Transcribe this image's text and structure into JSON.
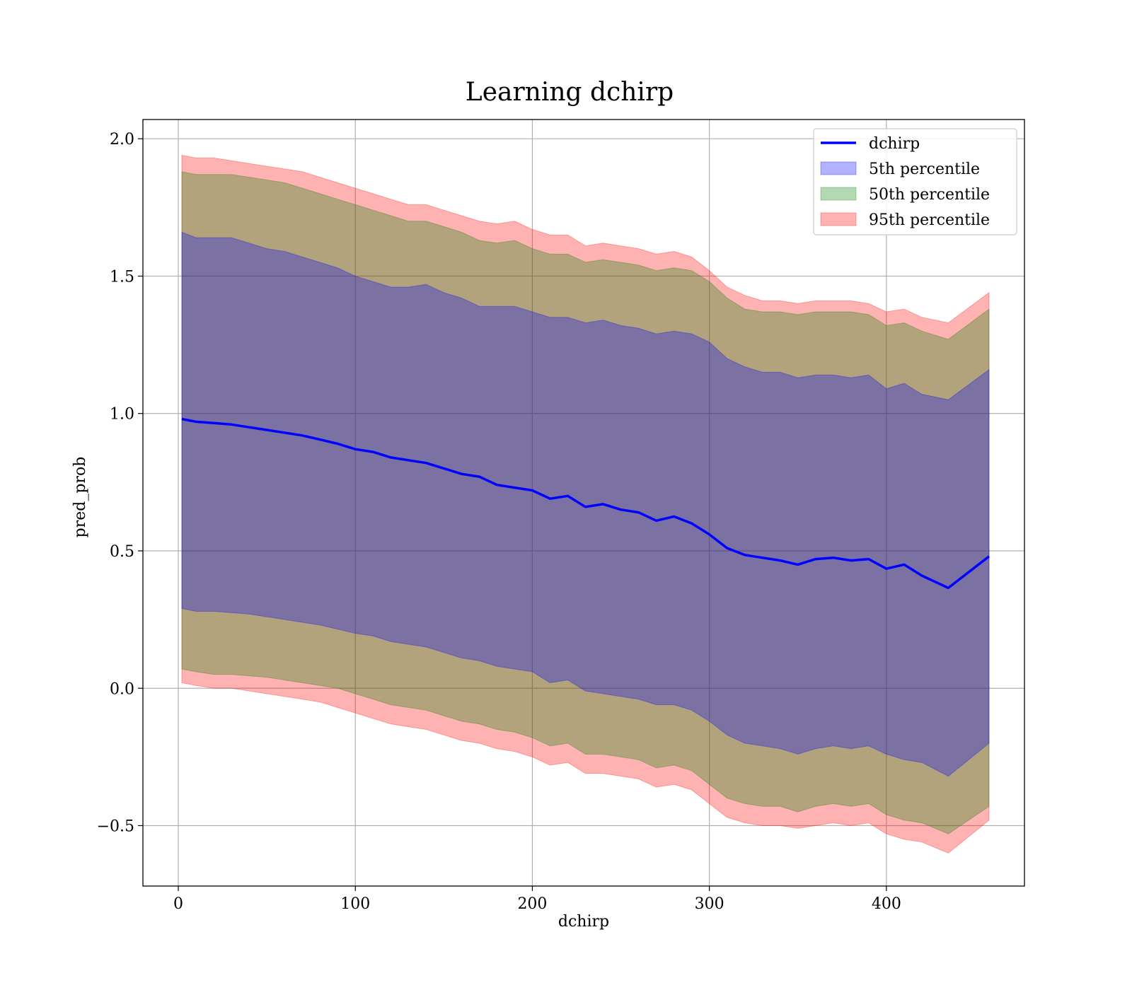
{
  "chart_data": {
    "type": "line",
    "title": "Learning dchirp",
    "xlabel": "dchirp",
    "ylabel": "pred_prob",
    "xlim": [
      -20,
      478
    ],
    "ylim": [
      -0.72,
      2.07
    ],
    "xticks": [
      0,
      100,
      200,
      300,
      400
    ],
    "xtick_labels": [
      "0",
      "100",
      "200",
      "300",
      "400"
    ],
    "yticks": [
      -0.5,
      0.0,
      0.5,
      1.0,
      1.5,
      2.0
    ],
    "ytick_labels": [
      "−0.5",
      "0.0",
      "0.5",
      "1.0",
      "1.5",
      "2.0"
    ],
    "grid": true,
    "legend_position": "top-right",
    "x": [
      2,
      10,
      20,
      30,
      40,
      50,
      60,
      70,
      80,
      90,
      100,
      110,
      120,
      130,
      140,
      150,
      160,
      170,
      180,
      190,
      200,
      210,
      220,
      230,
      240,
      250,
      260,
      270,
      280,
      290,
      300,
      310,
      320,
      330,
      340,
      350,
      360,
      370,
      380,
      390,
      400,
      410,
      420,
      435,
      458
    ],
    "series": [
      {
        "name": "dchirp",
        "kind": "line",
        "color": "#0000ff",
        "values": [
          0.98,
          0.97,
          0.965,
          0.96,
          0.95,
          0.94,
          0.93,
          0.92,
          0.905,
          0.89,
          0.87,
          0.86,
          0.84,
          0.83,
          0.82,
          0.8,
          0.78,
          0.77,
          0.74,
          0.73,
          0.72,
          0.69,
          0.7,
          0.66,
          0.67,
          0.65,
          0.64,
          0.61,
          0.625,
          0.6,
          0.56,
          0.51,
          0.485,
          0.475,
          0.465,
          0.45,
          0.47,
          0.475,
          0.465,
          0.47,
          0.435,
          0.45,
          0.41,
          0.365,
          0.48
        ]
      },
      {
        "name": "5th percentile",
        "kind": "band",
        "color": "#0000ff",
        "upper": [
          1.66,
          1.64,
          1.64,
          1.64,
          1.62,
          1.6,
          1.59,
          1.57,
          1.55,
          1.53,
          1.5,
          1.48,
          1.46,
          1.46,
          1.47,
          1.44,
          1.42,
          1.39,
          1.39,
          1.39,
          1.37,
          1.35,
          1.35,
          1.33,
          1.34,
          1.32,
          1.31,
          1.29,
          1.3,
          1.29,
          1.26,
          1.2,
          1.17,
          1.15,
          1.15,
          1.13,
          1.14,
          1.14,
          1.13,
          1.14,
          1.09,
          1.11,
          1.07,
          1.05,
          1.16
        ],
        "lower": [
          0.29,
          0.28,
          0.28,
          0.275,
          0.27,
          0.26,
          0.25,
          0.24,
          0.23,
          0.215,
          0.2,
          0.19,
          0.17,
          0.16,
          0.15,
          0.13,
          0.11,
          0.1,
          0.08,
          0.07,
          0.06,
          0.02,
          0.03,
          -0.01,
          -0.02,
          -0.03,
          -0.04,
          -0.06,
          -0.06,
          -0.08,
          -0.12,
          -0.17,
          -0.2,
          -0.21,
          -0.22,
          -0.24,
          -0.22,
          -0.21,
          -0.22,
          -0.21,
          -0.24,
          -0.26,
          -0.27,
          -0.32,
          -0.2
        ]
      },
      {
        "name": "50th percentile",
        "kind": "band",
        "color": "#008000",
        "upper": [
          1.88,
          1.87,
          1.87,
          1.87,
          1.86,
          1.85,
          1.84,
          1.82,
          1.8,
          1.78,
          1.76,
          1.74,
          1.72,
          1.7,
          1.7,
          1.68,
          1.66,
          1.63,
          1.62,
          1.63,
          1.6,
          1.58,
          1.58,
          1.55,
          1.56,
          1.55,
          1.54,
          1.52,
          1.53,
          1.52,
          1.48,
          1.42,
          1.38,
          1.37,
          1.37,
          1.36,
          1.37,
          1.37,
          1.37,
          1.36,
          1.32,
          1.33,
          1.3,
          1.27,
          1.38
        ],
        "lower": [
          0.07,
          0.06,
          0.05,
          0.05,
          0.045,
          0.04,
          0.03,
          0.02,
          0.01,
          0.0,
          -0.02,
          -0.04,
          -0.06,
          -0.07,
          -0.08,
          -0.1,
          -0.12,
          -0.13,
          -0.15,
          -0.16,
          -0.18,
          -0.21,
          -0.2,
          -0.24,
          -0.24,
          -0.25,
          -0.26,
          -0.29,
          -0.28,
          -0.3,
          -0.35,
          -0.4,
          -0.42,
          -0.43,
          -0.43,
          -0.45,
          -0.43,
          -0.42,
          -0.43,
          -0.42,
          -0.46,
          -0.48,
          -0.49,
          -0.53,
          -0.43
        ]
      },
      {
        "name": "95th percentile",
        "kind": "band",
        "color": "#ff0000",
        "upper": [
          1.94,
          1.93,
          1.93,
          1.92,
          1.91,
          1.9,
          1.89,
          1.88,
          1.86,
          1.84,
          1.82,
          1.8,
          1.78,
          1.76,
          1.76,
          1.74,
          1.72,
          1.7,
          1.69,
          1.7,
          1.67,
          1.65,
          1.65,
          1.61,
          1.62,
          1.61,
          1.6,
          1.58,
          1.59,
          1.57,
          1.52,
          1.46,
          1.43,
          1.41,
          1.41,
          1.4,
          1.41,
          1.41,
          1.41,
          1.4,
          1.37,
          1.38,
          1.35,
          1.33,
          1.44
        ],
        "lower": [
          0.02,
          0.01,
          0.0,
          0.0,
          -0.01,
          -0.02,
          -0.03,
          -0.04,
          -0.05,
          -0.07,
          -0.09,
          -0.11,
          -0.13,
          -0.14,
          -0.15,
          -0.17,
          -0.19,
          -0.2,
          -0.22,
          -0.23,
          -0.25,
          -0.28,
          -0.27,
          -0.31,
          -0.31,
          -0.32,
          -0.33,
          -0.36,
          -0.35,
          -0.37,
          -0.42,
          -0.47,
          -0.49,
          -0.5,
          -0.5,
          -0.51,
          -0.5,
          -0.49,
          -0.5,
          -0.49,
          -0.53,
          -0.55,
          -0.56,
          -0.6,
          -0.48
        ]
      }
    ]
  }
}
